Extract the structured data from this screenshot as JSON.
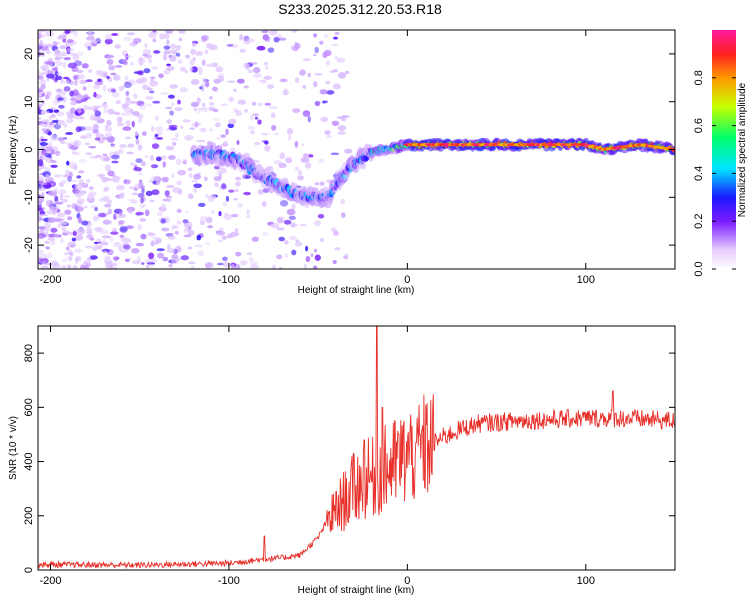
{
  "title": "S233.2025.312.20.53.R18",
  "chart_data": [
    {
      "type": "heatmap",
      "xlabel": "Height of straight line (km)",
      "ylabel": "Frequency (Hz)",
      "xlim": [
        -207,
        150
      ],
      "ylim": [
        -25,
        25
      ],
      "xticks": [
        -200,
        -100,
        0,
        100
      ],
      "yticks": [
        -20,
        -10,
        0,
        10,
        20
      ],
      "colorbar": {
        "label": "Normalized spectral amplitude",
        "range": [
          0,
          1
        ],
        "ticks": [
          "0.0",
          "0.2",
          "0.4",
          "0.6",
          "0.8"
        ]
      },
      "ridge": {
        "x": [
          -120,
          -105,
          -95,
          -85,
          -75,
          -65,
          -55,
          -45,
          -38,
          -30,
          -22,
          -15,
          -10,
          0,
          10,
          50,
          100,
          110,
          130,
          150
        ],
        "y": [
          -1,
          -1,
          -2,
          -5,
          -7,
          -9,
          -10,
          -10,
          -6,
          -3,
          -1,
          0,
          0,
          1,
          1,
          1,
          1,
          0,
          1,
          0
        ]
      }
    },
    {
      "type": "line",
      "xlabel": "Height of straight line (km)",
      "ylabel": "SNR (10 * v/v)",
      "xlim": [
        -207,
        150
      ],
      "ylim": [
        0,
        900
      ],
      "xticks": [
        -200,
        -100,
        0,
        100
      ],
      "yticks": [
        0,
        200,
        400,
        600,
        800
      ],
      "series": [
        {
          "name": "SNR",
          "color": "#e8302a",
          "envelope": {
            "x": [
              -207,
              -150,
              -100,
              -80,
              -70,
              -60,
              -50,
              -45,
              -40,
              -35,
              -30,
              -25,
              -20,
              -15,
              -10,
              -5,
              0,
              5,
              10,
              15,
              20,
              30,
              40,
              60,
              80,
              100,
              120,
              150
            ],
            "y": [
              20,
              18,
              25,
              40,
              45,
              55,
              120,
              180,
              220,
              260,
              300,
              330,
              340,
              360,
              380,
              400,
              420,
              440,
              455,
              470,
              490,
              520,
              540,
              550,
              555,
              560,
              560,
              550
            ]
          },
          "spikes": [
            {
              "x": -80,
              "y": 125
            },
            {
              "x": -40,
              "y": 290
            },
            {
              "x": -30,
              "y": 430
            },
            {
              "x": -24,
              "y": 480
            },
            {
              "x": -17,
              "y": 900
            },
            {
              "x": -14,
              "y": 600
            },
            {
              "x": -5,
              "y": 500
            },
            {
              "x": 5,
              "y": 470
            },
            {
              "x": 115,
              "y": 660
            }
          ]
        }
      ]
    }
  ]
}
